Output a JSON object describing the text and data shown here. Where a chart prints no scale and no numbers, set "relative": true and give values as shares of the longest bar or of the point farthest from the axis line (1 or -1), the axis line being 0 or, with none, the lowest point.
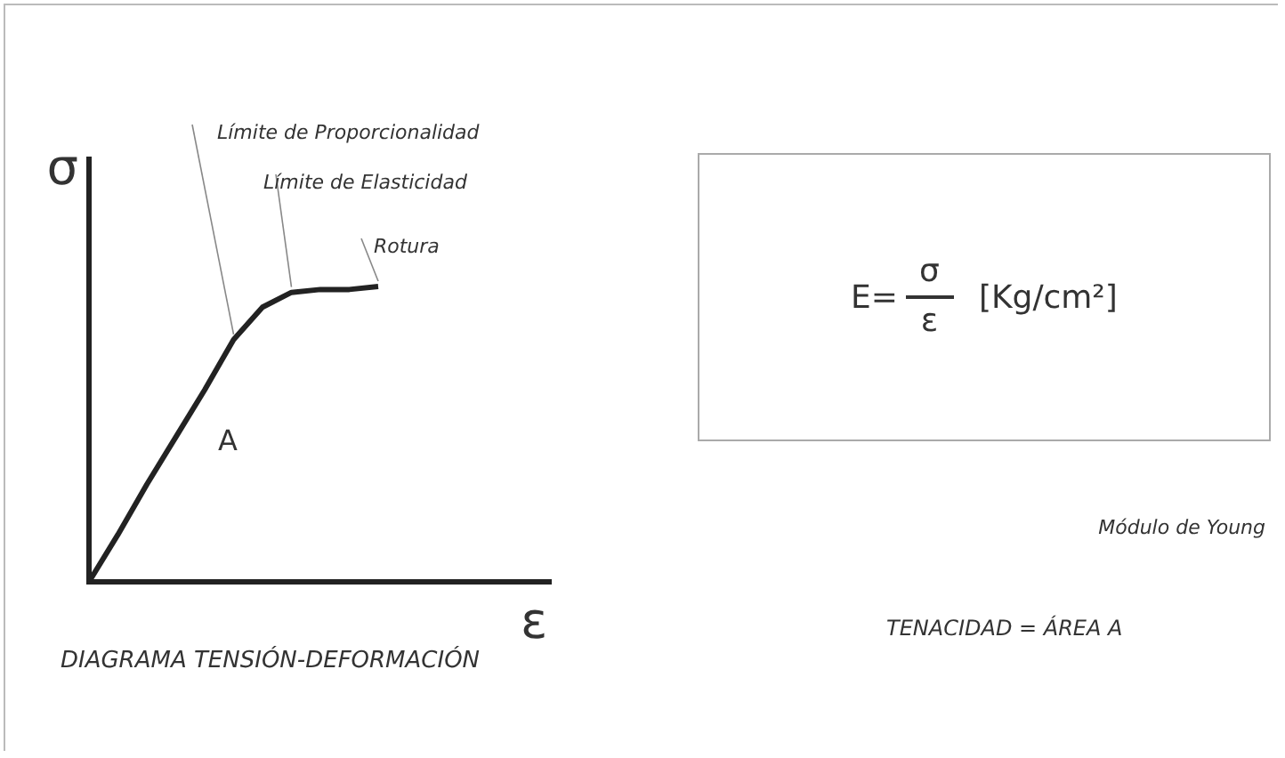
{
  "chart_data": [
    {
      "type": "line",
      "title": "DIAGRAMA TENSIÓN-DEFORMACIÓN",
      "xlabel": "ε",
      "ylabel": "σ",
      "relative": true,
      "categories": [
        null,
        null,
        null,
        null,
        null,
        null,
        null,
        null,
        null,
        null,
        null,
        null,
        null,
        null,
        null,
        null,
        null
      ],
      "series": [
        {
          "color": "#222222",
          "values": [
            0,
            0.16,
            0.33,
            0.49,
            0.65,
            0.82,
            0.93,
            0.98,
            0.99,
            0.99,
            1,
            null,
            null,
            null,
            null,
            null,
            null
          ]
        }
      ],
      "annotations": [
        "Límite de Proporcionalidad",
        "Límite de Elasticidad",
        "Rotura",
        "A"
      ]
    },
    {
      "type": "other",
      "annotations": [
        "E=",
        "σ",
        "ε",
        "[Kg/cm²]",
        "Módulo de Young",
        "TENACIDAD = ÁREA A"
      ]
    }
  ]
}
